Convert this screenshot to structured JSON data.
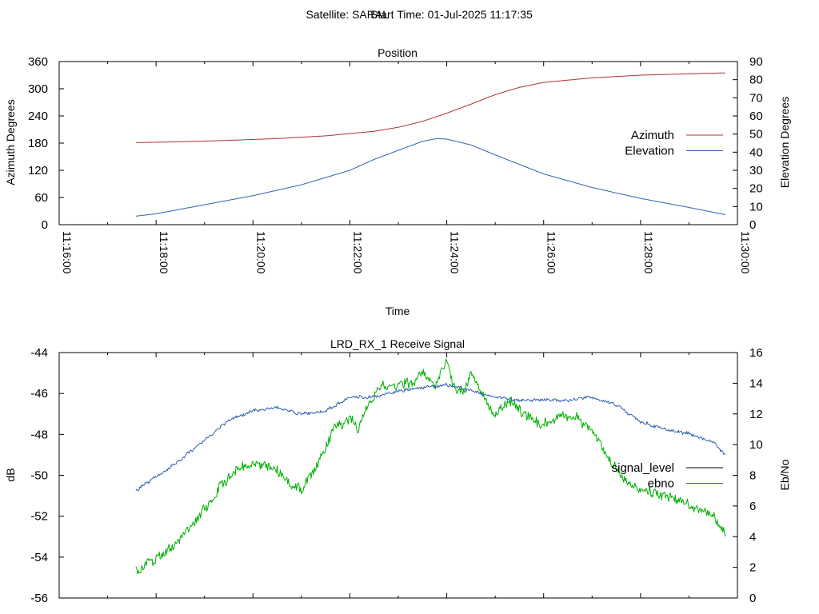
{
  "header": {
    "satellite_text": "Satellite: SARAL",
    "start_time_text": "Start Time: 01-Jul-2025 11:17:35"
  },
  "colors": {
    "azimuth": "#b03030",
    "elevation": "#3060b0",
    "signal_level": "#000000",
    "signal_level_trace": "#00b000",
    "ebno": "#3060b0"
  },
  "chart_data": [
    {
      "type": "line",
      "title": "Position",
      "xlabel": "Time",
      "ylabel": "Azimuth Degrees",
      "y2label": "Elevation Degrees",
      "xlim": [
        "11:16:00",
        "11:30:00"
      ],
      "ylim": [
        0,
        360
      ],
      "y2lim": [
        0,
        90
      ],
      "xticks": [
        "11:16:00",
        "11:18:00",
        "11:20:00",
        "11:22:00",
        "11:24:00",
        "11:26:00",
        "11:28:00",
        "11:30:00"
      ],
      "yticks": [
        "0",
        "60",
        "120",
        "180",
        "240",
        "300",
        "360"
      ],
      "y2ticks": [
        "0",
        "10",
        "20",
        "30",
        "40",
        "50",
        "60",
        "70",
        "80",
        "90"
      ],
      "legend_position": "right",
      "grid": false,
      "series": [
        {
          "name": "Azimuth",
          "axis": "y",
          "x": [
            "11:17:35",
            "11:18:30",
            "11:19:30",
            "11:20:30",
            "11:21:30",
            "11:22:30",
            "11:23:00",
            "11:23:30",
            "11:24:00",
            "11:24:30",
            "11:25:00",
            "11:25:30",
            "11:26:00",
            "11:27:00",
            "11:28:00",
            "11:29:00",
            "11:29:45"
          ],
          "values": [
            181,
            183,
            186,
            190,
            196,
            206,
            215,
            228,
            246,
            266,
            287,
            303,
            314,
            324,
            330,
            333,
            335
          ]
        },
        {
          "name": "Elevation",
          "axis": "y2",
          "x": [
            "11:17:35",
            "11:18:00",
            "11:19:00",
            "11:20:00",
            "11:21:00",
            "11:22:00",
            "11:22:30",
            "11:23:00",
            "11:23:30",
            "11:23:48",
            "11:24:00",
            "11:24:30",
            "11:25:00",
            "11:26:00",
            "11:27:00",
            "11:28:00",
            "11:29:00",
            "11:29:45"
          ],
          "values": [
            4.7,
            6,
            11,
            16,
            22,
            30,
            36,
            41,
            46,
            47.5,
            47.2,
            44,
            38.5,
            28,
            20.5,
            14.5,
            9.5,
            5.5
          ]
        }
      ]
    },
    {
      "type": "line",
      "title": "LRD_RX_1 Receive Signal",
      "ylabel": "dB",
      "y2label": "Eb/No",
      "xlim": [
        "11:16:00",
        "11:30:00"
      ],
      "ylim": [
        -56,
        -44
      ],
      "y2lim": [
        0,
        16
      ],
      "yticks": [
        "-44",
        "-46",
        "-48",
        "-50",
        "-52",
        "-54",
        "-56"
      ],
      "y2ticks": [
        "0",
        "2",
        "4",
        "6",
        "8",
        "10",
        "12",
        "14",
        "16"
      ],
      "legend_position": "right",
      "grid": false,
      "series": [
        {
          "name": "signal_level",
          "axis": "y",
          "x": [
            "11:17:35",
            "11:18:00",
            "11:18:30",
            "11:19:00",
            "11:19:20",
            "11:19:40",
            "11:20:10",
            "11:20:30",
            "11:20:45",
            "11:21:00",
            "11:21:20",
            "11:21:40",
            "11:22:00",
            "11:22:10",
            "11:22:20",
            "11:22:40",
            "11:23:00",
            "11:23:20",
            "11:23:30",
            "11:23:45",
            "11:23:50",
            "11:24:00",
            "11:24:10",
            "11:24:20",
            "11:24:30",
            "11:24:40",
            "11:24:50",
            "11:25:00",
            "11:25:10",
            "11:25:20",
            "11:25:40",
            "11:26:00",
            "11:26:20",
            "11:26:40",
            "11:27:00",
            "11:27:20",
            "11:27:40",
            "11:28:00",
            "11:28:20",
            "11:28:40",
            "11:29:00",
            "11:29:30",
            "11:29:45"
          ],
          "values": [
            -54.6,
            -54.1,
            -53.2,
            -51.7,
            -50.5,
            -49.7,
            -49.4,
            -49.7,
            -50.4,
            -50.7,
            -49.4,
            -47.7,
            -47.3,
            -47.7,
            -46.8,
            -45.6,
            -45.7,
            -45.4,
            -44.9,
            -45.6,
            -45.2,
            -44.4,
            -45.8,
            -45.9,
            -45.1,
            -45.6,
            -46.4,
            -47.1,
            -46.6,
            -46.4,
            -47.2,
            -47.5,
            -47.2,
            -47.1,
            -47.8,
            -49.2,
            -50.2,
            -50.7,
            -50.9,
            -51.1,
            -51.5,
            -52.0,
            -52.9
          ]
        },
        {
          "name": "ebno",
          "axis": "y2",
          "x": [
            "11:17:35",
            "11:18:00",
            "11:18:30",
            "11:19:00",
            "11:19:30",
            "11:20:00",
            "11:20:30",
            "11:21:00",
            "11:21:30",
            "11:22:00",
            "11:22:30",
            "11:23:00",
            "11:23:30",
            "11:24:00",
            "11:24:30",
            "11:25:00",
            "11:25:30",
            "11:26:00",
            "11:26:30",
            "11:27:00",
            "11:27:30",
            "11:28:00",
            "11:28:30",
            "11:29:00",
            "11:29:30",
            "11:29:45"
          ],
          "values": [
            7.0,
            7.9,
            9.0,
            10.3,
            11.6,
            12.2,
            12.4,
            12.0,
            12.2,
            13.1,
            13.1,
            13.5,
            13.7,
            13.9,
            13.5,
            13.1,
            12.9,
            12.9,
            12.9,
            13.1,
            12.6,
            11.5,
            11.0,
            10.7,
            10.2,
            9.3
          ]
        }
      ]
    }
  ]
}
